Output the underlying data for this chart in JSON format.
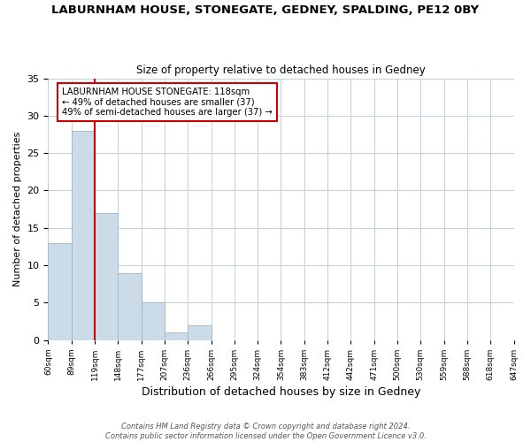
{
  "title": "LABURNHAM HOUSE, STONEGATE, GEDNEY, SPALDING, PE12 0BY",
  "subtitle": "Size of property relative to detached houses in Gedney",
  "xlabel": "Distribution of detached houses by size in Gedney",
  "ylabel": "Number of detached properties",
  "bin_labels": [
    "60sqm",
    "89sqm",
    "119sqm",
    "148sqm",
    "177sqm",
    "207sqm",
    "236sqm",
    "266sqm",
    "295sqm",
    "324sqm",
    "354sqm",
    "383sqm",
    "412sqm",
    "442sqm",
    "471sqm",
    "500sqm",
    "530sqm",
    "559sqm",
    "588sqm",
    "618sqm",
    "647sqm"
  ],
  "counts": [
    13,
    28,
    17,
    9,
    5,
    1,
    2,
    0,
    0,
    0,
    0,
    0,
    0,
    0,
    0,
    0,
    0,
    0,
    0,
    0
  ],
  "bar_color": "#ccdbe8",
  "bar_edge_color": "#9ab8cc",
  "vline_color": "#cc0000",
  "annotation_title": "LABURNHAM HOUSE STONEGATE: 118sqm",
  "annotation_line1": "← 49% of detached houses are smaller (37)",
  "annotation_line2": "49% of semi-detached houses are larger (37) →",
  "annotation_box_color": "#ffffff",
  "annotation_box_edge": "#cc0000",
  "ylim": [
    0,
    35
  ],
  "yticks": [
    0,
    5,
    10,
    15,
    20,
    25,
    30,
    35
  ],
  "footer1": "Contains HM Land Registry data © Crown copyright and database right 2024.",
  "footer2": "Contains public sector information licensed under the Open Government Licence v3.0.",
  "bg_color": "#ffffff",
  "grid_color": "#c0cfe0",
  "title_fontsize": 9.5,
  "subtitle_fontsize": 8.5
}
